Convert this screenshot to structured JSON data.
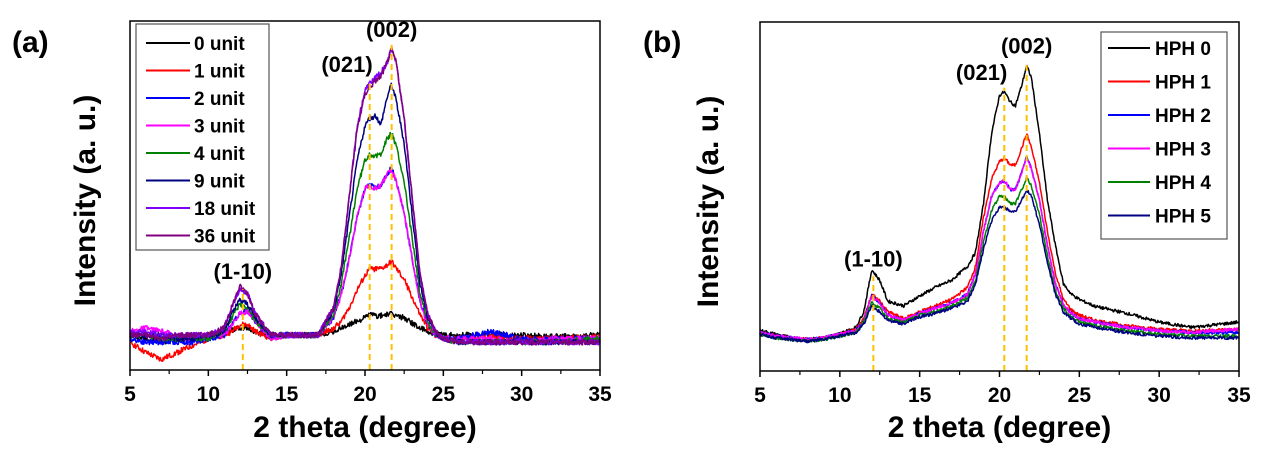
{
  "chart_data": [
    {
      "type": "line",
      "panel_label": "(a)",
      "xlabel": "2 theta (degree)",
      "ylabel": "Intensity (a. u.)",
      "xlim": [
        5,
        35
      ],
      "ylim": [
        0,
        100
      ],
      "xticks": [
        5,
        10,
        15,
        20,
        25,
        30,
        35
      ],
      "y_ticks_shown": false,
      "grid": false,
      "legend_position": "top-left",
      "annotations": [
        {
          "text": "(1-10)",
          "x": 12.2
        },
        {
          "text": "(021)",
          "x": 20.3
        },
        {
          "text": "(002)",
          "x": 21.7
        }
      ],
      "reference_line_color": "#ffc000",
      "x": [
        5,
        6,
        7,
        8,
        9,
        10,
        11,
        11.5,
        12,
        12.5,
        13,
        14,
        15,
        16,
        17,
        18,
        18.5,
        19,
        19.5,
        20,
        20.3,
        20.7,
        21,
        21.4,
        21.7,
        22,
        22.5,
        23,
        23.5,
        24,
        24.5,
        25,
        26,
        28,
        30,
        32,
        35
      ],
      "series": [
        {
          "name": "0 unit",
          "color": "#000000",
          "values": [
            10,
            9,
            8,
            9,
            9,
            10,
            11,
            11.5,
            12,
            12,
            11,
            10,
            10,
            10,
            10,
            11,
            12,
            13,
            14,
            15,
            16,
            15.5,
            15.5,
            16,
            16,
            15.5,
            15,
            13.5,
            12,
            11,
            10.5,
            10,
            10,
            10,
            10,
            9.5,
            10
          ]
        },
        {
          "name": "1 unit",
          "color": "#ff0000",
          "values": [
            8,
            5,
            3,
            5,
            7,
            9,
            10,
            11,
            13,
            13,
            11,
            9,
            10,
            10,
            10,
            12,
            14,
            18,
            23,
            27,
            29,
            29,
            29,
            30,
            31,
            29,
            26,
            21,
            16,
            12,
            10,
            9,
            9,
            9.5,
            9,
            9,
            9.5
          ]
        },
        {
          "name": "2 unit",
          "color": "#0000ff",
          "values": [
            9,
            8,
            8,
            8,
            8,
            9,
            10,
            13,
            16,
            17,
            14,
            9,
            10,
            10,
            10,
            15,
            22,
            32,
            44,
            52,
            53,
            52,
            53,
            56,
            58,
            54,
            45,
            32,
            20,
            13,
            10,
            9,
            9,
            11,
            9,
            9,
            9
          ]
        },
        {
          "name": "3 unit",
          "color": "#ff00ff",
          "values": [
            11,
            12,
            11,
            10,
            9,
            10,
            10,
            13,
            16,
            17,
            14,
            9,
            10,
            10,
            10,
            15,
            22,
            32,
            44,
            52,
            53,
            52,
            53,
            56,
            57,
            54,
            45,
            32,
            20,
            13,
            10,
            9,
            9,
            9,
            8,
            9,
            9
          ]
        },
        {
          "name": "4 unit",
          "color": "#008000",
          "values": [
            10,
            10,
            9,
            9,
            9,
            9,
            11,
            15,
            19,
            18,
            14,
            10,
            10,
            10,
            10,
            16,
            25,
            38,
            52,
            60,
            62,
            61,
            62,
            66,
            68,
            64,
            54,
            38,
            22,
            14,
            10,
            9,
            8,
            8,
            8,
            8,
            9
          ]
        },
        {
          "name": "9 unit",
          "color": "#000080",
          "values": [
            10,
            10,
            10,
            9,
            9,
            10,
            11,
            16,
            20,
            19,
            15,
            10,
            10,
            10,
            10,
            17,
            28,
            44,
            60,
            70,
            72,
            73,
            70,
            78,
            82,
            77,
            65,
            45,
            25,
            15,
            11,
            9,
            8,
            8,
            8,
            8,
            8
          ]
        },
        {
          "name": "18 unit",
          "color": "#8000ff",
          "values": [
            11,
            11,
            10,
            10,
            10,
            10,
            12,
            18,
            23,
            22,
            16,
            10,
            10,
            10,
            10,
            18,
            30,
            50,
            70,
            80,
            82,
            84,
            85,
            88,
            92,
            88,
            72,
            50,
            28,
            16,
            11,
            9,
            8,
            8,
            8,
            8,
            8
          ]
        },
        {
          "name": "36 unit",
          "color": "#800080",
          "values": [
            10,
            10,
            9,
            10,
            10,
            10,
            12,
            18,
            24,
            22,
            16,
            10,
            10,
            10,
            10,
            18,
            30,
            50,
            69,
            79,
            81,
            83,
            84,
            88,
            92,
            88,
            72,
            50,
            28,
            16,
            11,
            9,
            8,
            8,
            8,
            8,
            8
          ]
        }
      ]
    },
    {
      "type": "line",
      "panel_label": "(b)",
      "xlabel": "2 theta (degree)",
      "ylabel": "Intensity (a. u.)",
      "xlim": [
        5,
        35
      ],
      "ylim": [
        0,
        100
      ],
      "xticks": [
        5,
        10,
        15,
        20,
        25,
        30,
        35
      ],
      "y_ticks_shown": false,
      "grid": false,
      "legend_position": "top-right",
      "annotations": [
        {
          "text": "(1-10)",
          "x": 12.1
        },
        {
          "text": "(021)",
          "x": 20.3
        },
        {
          "text": "(002)",
          "x": 21.7
        }
      ],
      "reference_line_color": "#ffc000",
      "x": [
        5,
        6,
        7,
        8,
        9,
        10,
        11,
        11.5,
        12,
        12.5,
        13,
        14,
        15,
        16,
        17,
        18,
        18.5,
        19,
        19.5,
        20,
        20.3,
        20.7,
        21,
        21.4,
        21.7,
        22,
        22.5,
        23,
        23.5,
        24,
        24.5,
        25,
        26,
        28,
        30,
        32,
        35
      ],
      "series": [
        {
          "name": "HPH 0",
          "color": "#000000",
          "values": [
            11.6,
            10.5,
            9.5,
            9,
            9.5,
            10.7,
            12.5,
            17,
            29,
            26,
            20,
            18.7,
            21.5,
            24,
            26,
            30,
            34,
            48,
            68,
            79,
            80,
            77,
            76,
            82,
            87.5,
            84,
            68,
            49,
            36,
            25,
            22,
            20.5,
            18.5,
            16.5,
            14,
            12.5,
            14
          ]
        },
        {
          "name": "HPH 1",
          "color": "#ff0000",
          "values": [
            11,
            10,
            9.5,
            9,
            9.5,
            10.5,
            12,
            15,
            22,
            20,
            17,
            15,
            17,
            18.7,
            20.5,
            24,
            30,
            44,
            55,
            60,
            61,
            59,
            59,
            64,
            68,
            64,
            54,
            40,
            28,
            20.5,
            17.5,
            16,
            14.5,
            13,
            12,
            11.5,
            12
          ]
        },
        {
          "name": "HPH 2",
          "color": "#0000ff",
          "values": [
            11,
            10,
            9.5,
            9,
            9.5,
            10.5,
            11.5,
            14.5,
            21.5,
            19.5,
            16,
            14.5,
            16.5,
            18,
            19.5,
            22,
            28,
            40,
            50,
            54,
            54.5,
            52,
            52,
            57,
            61.6,
            58,
            49,
            36,
            25,
            19,
            16.5,
            15,
            14,
            12.5,
            11.5,
            11,
            11
          ]
        },
        {
          "name": "HPH 3",
          "color": "#ff00ff",
          "values": [
            11,
            10,
            9.5,
            9,
            9.5,
            10.5,
            11.5,
            14.5,
            21.5,
            19.5,
            16,
            14.5,
            16.5,
            18,
            19.5,
            22,
            28,
            40,
            50,
            54,
            54.5,
            52,
            52,
            57,
            61,
            58,
            49,
            36,
            25,
            19,
            16.5,
            15,
            14,
            12.5,
            11.5,
            11,
            12
          ]
        },
        {
          "name": "HPH 4",
          "color": "#008000",
          "values": [
            10.5,
            9.5,
            9,
            8.5,
            9,
            10,
            11,
            14,
            19.6,
            18,
            15,
            14,
            16,
            17,
            18.5,
            21,
            26,
            37,
            46,
            50,
            50,
            48,
            48,
            52,
            55.5,
            53,
            45,
            33,
            23,
            18,
            15.5,
            14,
            13,
            11.5,
            10.5,
            10,
            10
          ]
        },
        {
          "name": "HPH 5",
          "color": "#000080",
          "values": [
            10.5,
            9.5,
            9,
            8.5,
            9,
            10,
            11,
            13.5,
            18.7,
            17,
            14.5,
            13.5,
            15.5,
            16.5,
            18,
            20,
            25,
            35,
            43,
            47,
            47,
            45.5,
            45.5,
            49,
            52,
            50,
            42,
            31,
            22,
            17,
            15,
            13.5,
            12.5,
            11,
            10,
            9.5,
            9.5
          ]
        }
      ]
    }
  ]
}
